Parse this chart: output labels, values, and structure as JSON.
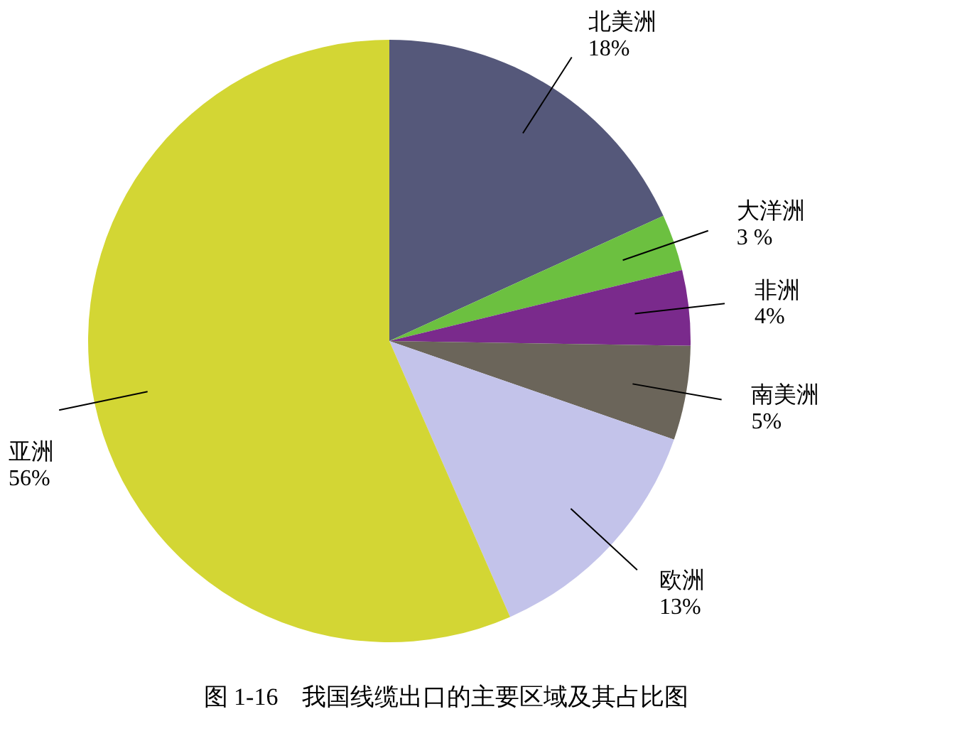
{
  "chart_data": {
    "type": "pie",
    "title": "图 1-16　我国线缆出口的主要区域及其占比图",
    "categories": [
      "北美洲",
      "大洋洲",
      "非洲",
      "南美洲",
      "欧洲",
      "亚洲"
    ],
    "values": [
      18,
      3,
      4,
      5,
      13,
      56
    ],
    "value_labels": [
      "18%",
      "3 %",
      "4%",
      "5%",
      "13%",
      "56%"
    ],
    "colors": [
      "#55587a",
      "#6cc040",
      "#7a2a8c",
      "#6b655a",
      "#c3c3ea",
      "#d3d634"
    ],
    "legend": false
  }
}
